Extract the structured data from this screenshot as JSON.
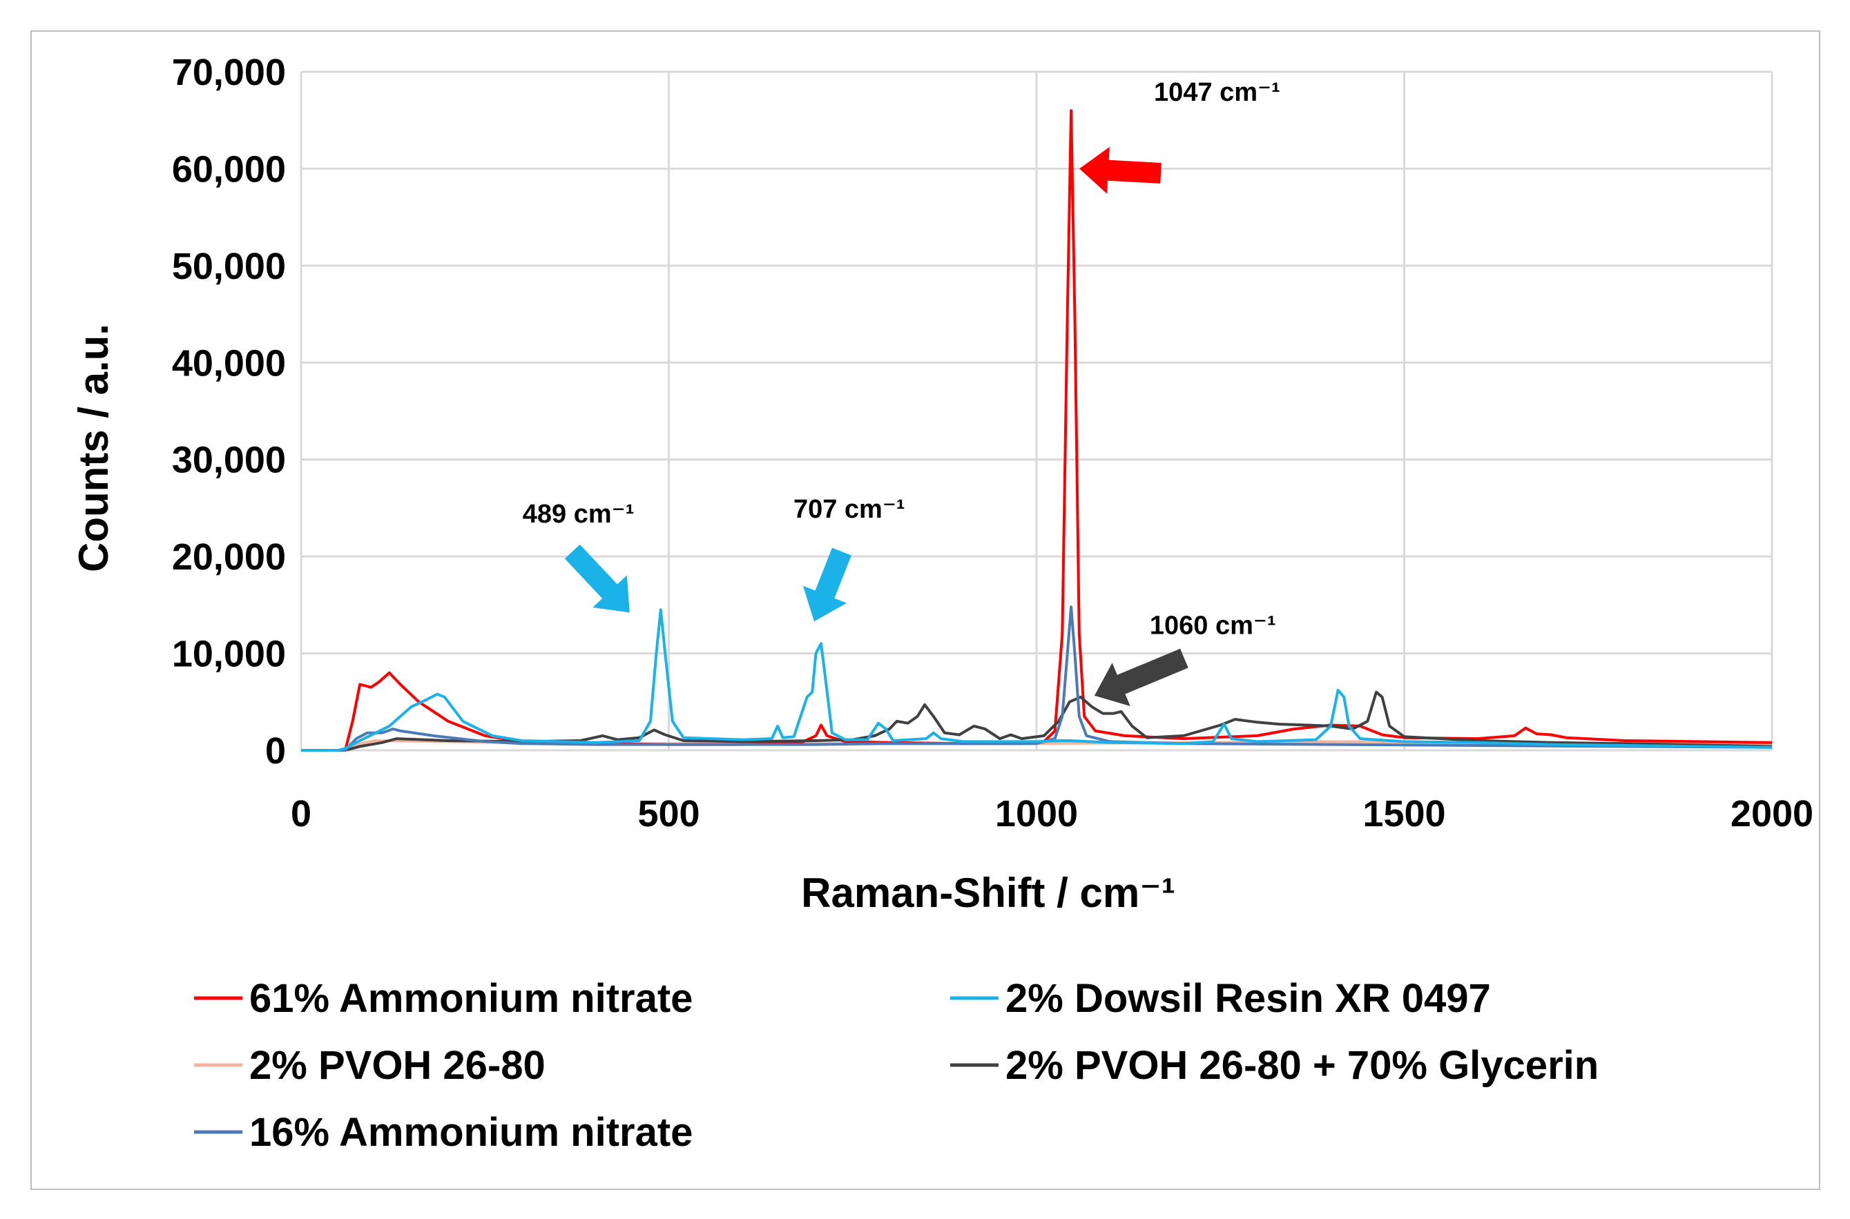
{
  "chart_data": {
    "type": "line",
    "title": "",
    "xlabel": "Raman-Shift / cm⁻¹",
    "ylabel": "Counts / a.u.",
    "xlim": [
      0,
      2000
    ],
    "ylim": [
      0,
      70000
    ],
    "x_ticks": [
      "0",
      "500",
      "1000",
      "1500",
      "2000"
    ],
    "y_ticks": [
      "0",
      "10,000",
      "20,000",
      "30,000",
      "40,000",
      "50,000",
      "60,000",
      "70,000"
    ],
    "grid": true,
    "legend_position": "bottom",
    "series": [
      {
        "name": "61% Ammonium nitrate",
        "color": "#ff0000",
        "points": [
          [
            0,
            0
          ],
          [
            40,
            0
          ],
          [
            60,
            0
          ],
          [
            70,
            3000
          ],
          [
            80,
            6800
          ],
          [
            95,
            6500
          ],
          [
            105,
            7000
          ],
          [
            120,
            8000
          ],
          [
            135,
            6800
          ],
          [
            160,
            5000
          ],
          [
            200,
            3000
          ],
          [
            250,
            1500
          ],
          [
            300,
            900
          ],
          [
            400,
            700
          ],
          [
            500,
            600
          ],
          [
            600,
            600
          ],
          [
            680,
            800
          ],
          [
            700,
            1500
          ],
          [
            707,
            2600
          ],
          [
            715,
            1500
          ],
          [
            740,
            900
          ],
          [
            800,
            800
          ],
          [
            900,
            700
          ],
          [
            980,
            700
          ],
          [
            1010,
            900
          ],
          [
            1025,
            2000
          ],
          [
            1035,
            12000
          ],
          [
            1042,
            45000
          ],
          [
            1047,
            66000
          ],
          [
            1052,
            45000
          ],
          [
            1058,
            12000
          ],
          [
            1065,
            3500
          ],
          [
            1080,
            2000
          ],
          [
            1120,
            1500
          ],
          [
            1200,
            1200
          ],
          [
            1300,
            1500
          ],
          [
            1350,
            2200
          ],
          [
            1400,
            2600
          ],
          [
            1440,
            2500
          ],
          [
            1470,
            1600
          ],
          [
            1500,
            1300
          ],
          [
            1600,
            1200
          ],
          [
            1650,
            1500
          ],
          [
            1665,
            2300
          ],
          [
            1680,
            1700
          ],
          [
            1700,
            1600
          ],
          [
            1720,
            1300
          ],
          [
            1800,
            1000
          ],
          [
            1900,
            900
          ],
          [
            2000,
            800
          ]
        ]
      },
      {
        "name": "2% Dowsil Resin XR 0497",
        "color": "#1ab2e8",
        "points": [
          [
            0,
            0
          ],
          [
            50,
            0
          ],
          [
            60,
            200
          ],
          [
            80,
            1000
          ],
          [
            120,
            2500
          ],
          [
            150,
            4500
          ],
          [
            170,
            5200
          ],
          [
            185,
            5800
          ],
          [
            195,
            5500
          ],
          [
            220,
            3000
          ],
          [
            260,
            1500
          ],
          [
            300,
            1000
          ],
          [
            400,
            800
          ],
          [
            460,
            1000
          ],
          [
            475,
            3000
          ],
          [
            483,
            10000
          ],
          [
            489,
            14500
          ],
          [
            495,
            10000
          ],
          [
            505,
            3000
          ],
          [
            520,
            1300
          ],
          [
            600,
            1100
          ],
          [
            640,
            1200
          ],
          [
            648,
            2500
          ],
          [
            655,
            1300
          ],
          [
            670,
            1400
          ],
          [
            688,
            5500
          ],
          [
            695,
            6000
          ],
          [
            700,
            10000
          ],
          [
            707,
            11000
          ],
          [
            712,
            8000
          ],
          [
            722,
            1800
          ],
          [
            740,
            1100
          ],
          [
            770,
            1100
          ],
          [
            785,
            2800
          ],
          [
            795,
            2200
          ],
          [
            805,
            1000
          ],
          [
            850,
            1200
          ],
          [
            860,
            1800
          ],
          [
            870,
            1200
          ],
          [
            900,
            900
          ],
          [
            1000,
            900
          ],
          [
            1030,
            1000
          ],
          [
            1045,
            1000
          ],
          [
            1100,
            800
          ],
          [
            1200,
            700
          ],
          [
            1240,
            900
          ],
          [
            1255,
            2700
          ],
          [
            1265,
            1200
          ],
          [
            1300,
            900
          ],
          [
            1380,
            1100
          ],
          [
            1400,
            2500
          ],
          [
            1410,
            6200
          ],
          [
            1418,
            5500
          ],
          [
            1425,
            2500
          ],
          [
            1440,
            1200
          ],
          [
            1500,
            900
          ],
          [
            1600,
            800
          ],
          [
            1700,
            600
          ],
          [
            2000,
            300
          ]
        ]
      },
      {
        "name": "2% PVOH 26-80",
        "color": "#f4b39c",
        "points": [
          [
            0,
            0
          ],
          [
            60,
            0
          ],
          [
            70,
            500
          ],
          [
            100,
            1000
          ],
          [
            200,
            900
          ],
          [
            400,
            700
          ],
          [
            600,
            700
          ],
          [
            800,
            700
          ],
          [
            1000,
            700
          ],
          [
            1200,
            800
          ],
          [
            1400,
            900
          ],
          [
            1600,
            800
          ],
          [
            1800,
            700
          ],
          [
            2000,
            700
          ]
        ]
      },
      {
        "name": "2% PVOH 26-80 + 70% Glycerin",
        "color": "#404040",
        "points": [
          [
            0,
            0
          ],
          [
            60,
            0
          ],
          [
            80,
            400
          ],
          [
            110,
            800
          ],
          [
            130,
            1200
          ],
          [
            200,
            1000
          ],
          [
            300,
            900
          ],
          [
            380,
            1000
          ],
          [
            410,
            1500
          ],
          [
            430,
            1100
          ],
          [
            460,
            1300
          ],
          [
            480,
            2100
          ],
          [
            495,
            1600
          ],
          [
            520,
            1000
          ],
          [
            600,
            900
          ],
          [
            700,
            1000
          ],
          [
            750,
            1100
          ],
          [
            780,
            1500
          ],
          [
            800,
            2200
          ],
          [
            810,
            3000
          ],
          [
            825,
            2800
          ],
          [
            838,
            3500
          ],
          [
            848,
            4700
          ],
          [
            860,
            3500
          ],
          [
            875,
            1800
          ],
          [
            895,
            1600
          ],
          [
            915,
            2500
          ],
          [
            930,
            2200
          ],
          [
            950,
            1200
          ],
          [
            965,
            1600
          ],
          [
            980,
            1200
          ],
          [
            1010,
            1500
          ],
          [
            1030,
            3000
          ],
          [
            1045,
            5000
          ],
          [
            1060,
            5500
          ],
          [
            1075,
            4500
          ],
          [
            1090,
            3800
          ],
          [
            1105,
            3800
          ],
          [
            1115,
            4000
          ],
          [
            1130,
            2500
          ],
          [
            1150,
            1300
          ],
          [
            1200,
            1500
          ],
          [
            1250,
            2600
          ],
          [
            1270,
            3200
          ],
          [
            1300,
            2900
          ],
          [
            1330,
            2700
          ],
          [
            1370,
            2600
          ],
          [
            1400,
            2500
          ],
          [
            1430,
            2200
          ],
          [
            1450,
            3000
          ],
          [
            1462,
            6000
          ],
          [
            1470,
            5500
          ],
          [
            1480,
            2500
          ],
          [
            1500,
            1400
          ],
          [
            1600,
            1000
          ],
          [
            1700,
            800
          ],
          [
            1800,
            700
          ],
          [
            2000,
            400
          ]
        ]
      },
      {
        "name": "16% Ammonium nitrate",
        "color": "#4a7ab8",
        "points": [
          [
            0,
            0
          ],
          [
            60,
            0
          ],
          [
            75,
            1200
          ],
          [
            90,
            1800
          ],
          [
            110,
            1800
          ],
          [
            125,
            2200
          ],
          [
            135,
            2000
          ],
          [
            180,
            1500
          ],
          [
            250,
            900
          ],
          [
            300,
            700
          ],
          [
            400,
            600
          ],
          [
            600,
            600
          ],
          [
            700,
            600
          ],
          [
            800,
            700
          ],
          [
            900,
            700
          ],
          [
            1000,
            700
          ],
          [
            1025,
            1200
          ],
          [
            1035,
            3500
          ],
          [
            1042,
            10000
          ],
          [
            1047,
            14800
          ],
          [
            1052,
            10000
          ],
          [
            1058,
            3500
          ],
          [
            1068,
            1500
          ],
          [
            1100,
            900
          ],
          [
            1200,
            700
          ],
          [
            1400,
            600
          ],
          [
            1600,
            500
          ],
          [
            1800,
            400
          ],
          [
            2000,
            300
          ]
        ]
      }
    ],
    "annotations": [
      {
        "label": "1047 cm⁻¹",
        "x": 1047,
        "y": 66000,
        "color": "#ff0000"
      },
      {
        "label": "489 cm⁻¹",
        "x": 489,
        "y": 14500,
        "color": "#1ab2e8"
      },
      {
        "label": "707 cm⁻¹",
        "x": 707,
        "y": 11000,
        "color": "#1ab2e8"
      },
      {
        "label": "1060 cm⁻¹",
        "x": 1060,
        "y": 5500,
        "color": "#404040"
      }
    ]
  }
}
